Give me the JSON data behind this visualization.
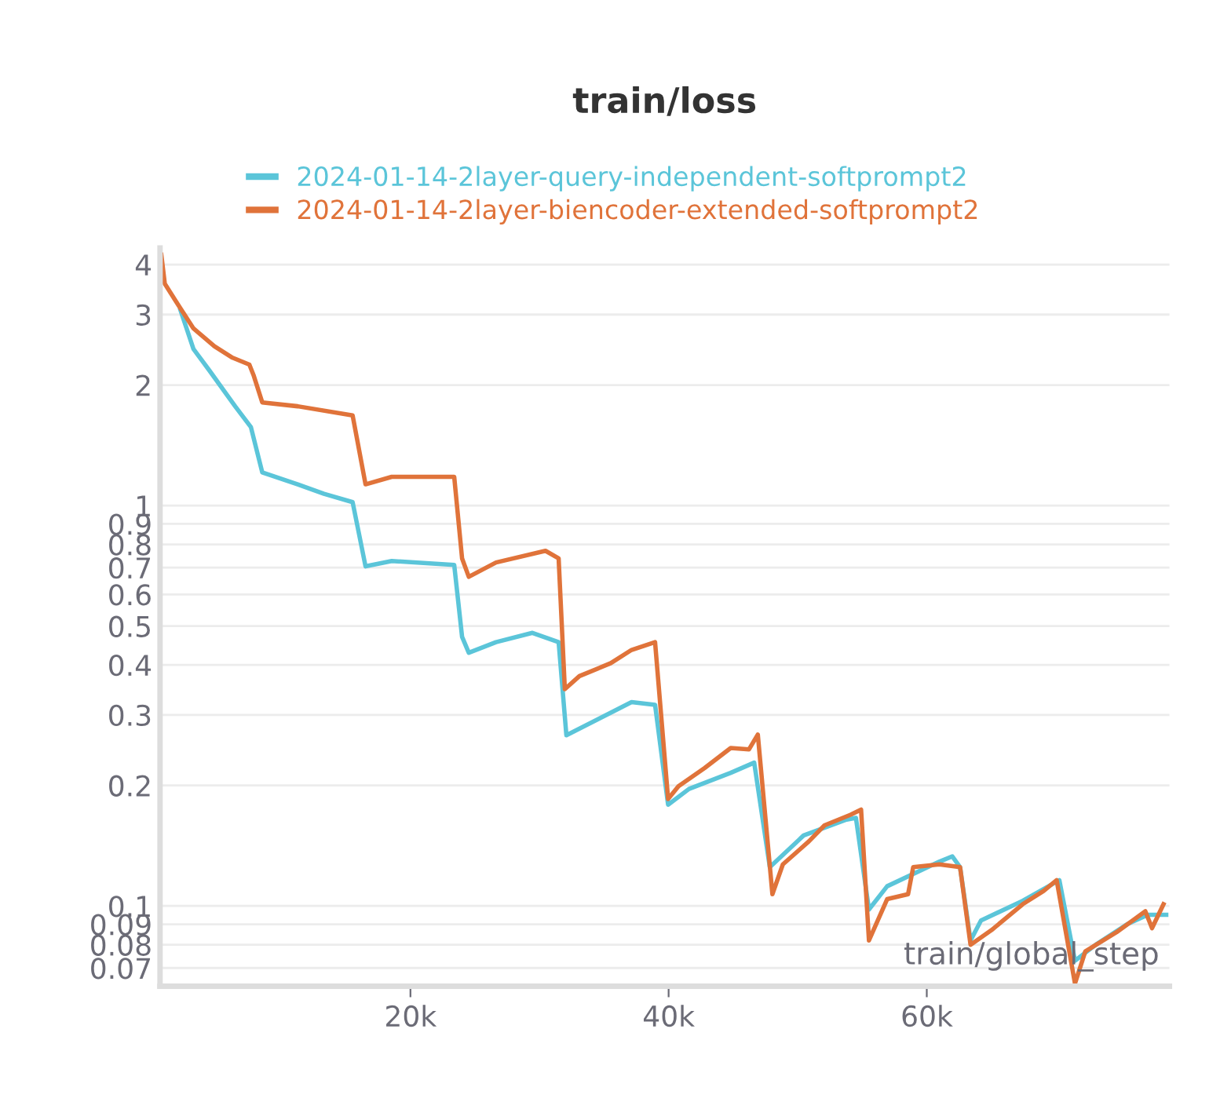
{
  "chart_data": {
    "type": "line",
    "title": "train/loss",
    "xlabel": "train/global_step",
    "log": "y",
    "grid": "y",
    "legend": "top",
    "line_style": "solid",
    "marker": "none",
    "xlim": [
      600,
      78800
    ],
    "xticks": [
      {
        "value": 20000,
        "label": "20k"
      },
      {
        "value": 40000,
        "label": "40k"
      },
      {
        "value": 60000,
        "label": "60k"
      }
    ],
    "ylim": [
      0.063,
      4.4
    ],
    "yticks": [
      4,
      3,
      2,
      1,
      0.9,
      0.8,
      0.7,
      0.6,
      0.5,
      0.4,
      0.3,
      0.2,
      0.1,
      0.09,
      0.08,
      0.07
    ],
    "series": [
      {
        "name": "2024-01-14-2layer-query-independent-softprompt2",
        "color": "#5bc5d9",
        "x": [
          2180,
          3190,
          4400,
          6420,
          7640,
          8520,
          11270,
          13300,
          15520,
          16520,
          18550,
          23390,
          24000,
          24520,
          26630,
          29450,
          31480,
          32080,
          35520,
          37130,
          38950,
          39960,
          41580,
          44810,
          46630,
          47840,
          50460,
          53700,
          54510,
          55520,
          56930,
          60970,
          61980,
          62580,
          63390,
          64200,
          67430,
          70270,
          71480,
          73090,
          75520,
          77130,
          78550
        ],
        "values": [
          3.08,
          2.46,
          2.18,
          1.77,
          1.57,
          1.21,
          1.13,
          1.07,
          1.02,
          0.705,
          0.727,
          0.711,
          0.47,
          0.429,
          0.456,
          0.481,
          0.456,
          0.267,
          0.304,
          0.323,
          0.318,
          0.179,
          0.196,
          0.215,
          0.228,
          0.125,
          0.15,
          0.164,
          0.166,
          0.098,
          0.112,
          0.129,
          0.133,
          0.125,
          0.082,
          0.092,
          0.103,
          0.116,
          0.073,
          0.08,
          0.09,
          0.095,
          0.095
        ]
      },
      {
        "name": "2024-01-14-2layer-biencoder-extended-softprompt2",
        "color": "#e0733a",
        "x": [
          700,
          970,
          1980,
          3190,
          4810,
          6220,
          7520,
          7840,
          8520,
          11270,
          15520,
          16520,
          18550,
          23390,
          24000,
          24520,
          26630,
          30460,
          31480,
          31960,
          33090,
          35520,
          37130,
          38950,
          39960,
          40760,
          42790,
          44810,
          46220,
          46910,
          48040,
          48850,
          50870,
          52080,
          54100,
          54910,
          55520,
          56930,
          58550,
          58950,
          60970,
          62580,
          63390,
          65010,
          67430,
          69050,
          70060,
          71480,
          72280,
          74700,
          76930,
          77450,
          78340
        ],
        "values": [
          4.23,
          3.58,
          3.18,
          2.77,
          2.5,
          2.34,
          2.25,
          2.12,
          1.81,
          1.77,
          1.68,
          1.13,
          1.18,
          1.18,
          0.738,
          0.664,
          0.721,
          0.771,
          0.738,
          0.348,
          0.375,
          0.404,
          0.436,
          0.456,
          0.185,
          0.199,
          0.221,
          0.248,
          0.246,
          0.268,
          0.107,
          0.127,
          0.145,
          0.159,
          0.169,
          0.174,
          0.082,
          0.104,
          0.107,
          0.125,
          0.127,
          0.125,
          0.08,
          0.087,
          0.101,
          0.109,
          0.116,
          0.064,
          0.077,
          0.086,
          0.097,
          0.088,
          0.101
        ]
      }
    ]
  }
}
